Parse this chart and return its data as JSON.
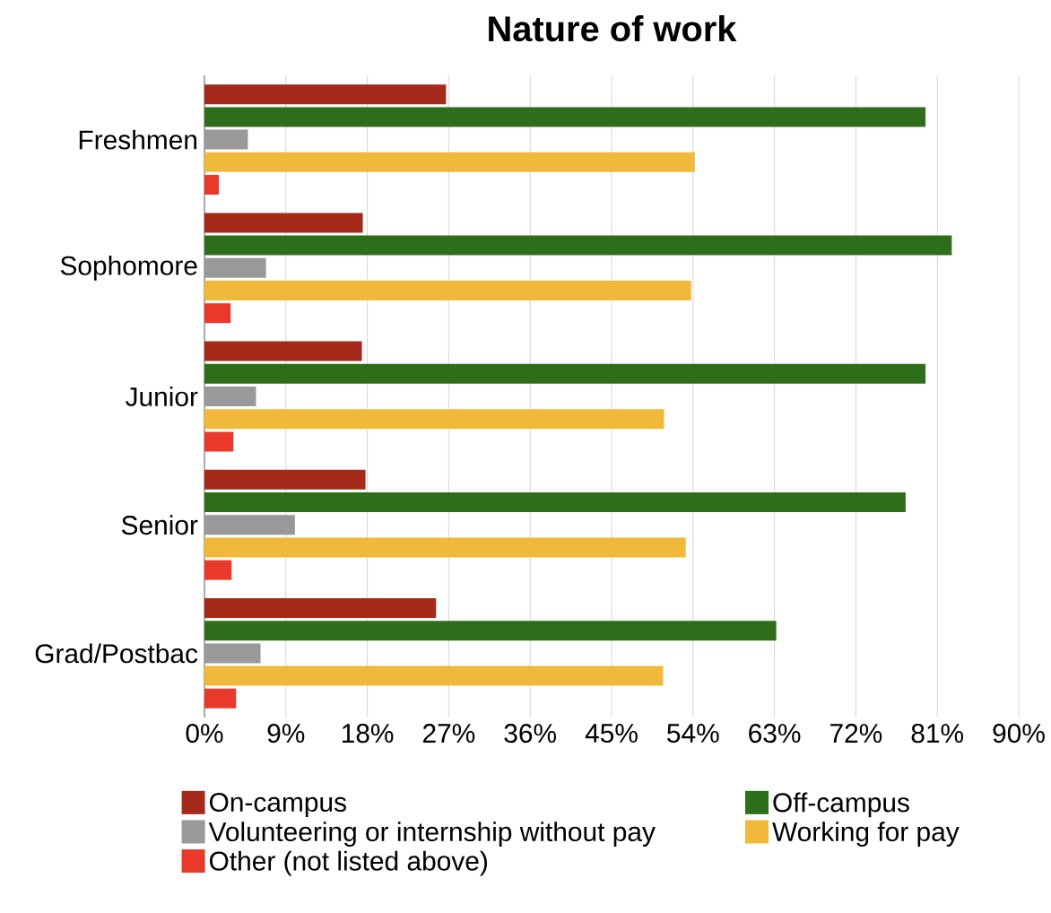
{
  "chart_data": {
    "type": "bar",
    "orientation": "horizontal",
    "title": "Nature of work",
    "categories": [
      "Freshmen",
      "Sophomore",
      "Junior",
      "Senior",
      "Grad/Postbac"
    ],
    "series": [
      {
        "name": "On-campus",
        "color": "#a52a1a",
        "values": [
          26.7,
          17.5,
          17.4,
          17.8,
          25.6
        ]
      },
      {
        "name": "Off-campus",
        "color": "#2e6e1a",
        "values": [
          79.7,
          82.6,
          79.7,
          77.5,
          63.2
        ]
      },
      {
        "name": "Volunteering or internship without pay",
        "color": "#999999",
        "values": [
          4.8,
          6.8,
          5.7,
          10.0,
          6.2
        ]
      },
      {
        "name": "Working for pay",
        "color": "#f0b93a",
        "values": [
          54.2,
          53.8,
          50.8,
          53.2,
          50.7
        ]
      },
      {
        "name": "Other (not listed above)",
        "color": "#e8392a",
        "values": [
          1.6,
          2.9,
          3.2,
          3.0,
          3.5
        ]
      }
    ],
    "xlim": [
      0,
      90
    ],
    "xticks": [
      {
        "value": 0,
        "label": "0%"
      },
      {
        "value": 9,
        "label": "9%"
      },
      {
        "value": 18,
        "label": "18%"
      },
      {
        "value": 27,
        "label": "27%"
      },
      {
        "value": 36,
        "label": "36%"
      },
      {
        "value": 45,
        "label": "45%"
      },
      {
        "value": 54,
        "label": "54%"
      },
      {
        "value": 63,
        "label": "63%"
      },
      {
        "value": 72,
        "label": "72%"
      },
      {
        "value": 81,
        "label": "81%"
      },
      {
        "value": 90,
        "label": "90%"
      }
    ],
    "grid": "x",
    "legend": "bottom"
  }
}
